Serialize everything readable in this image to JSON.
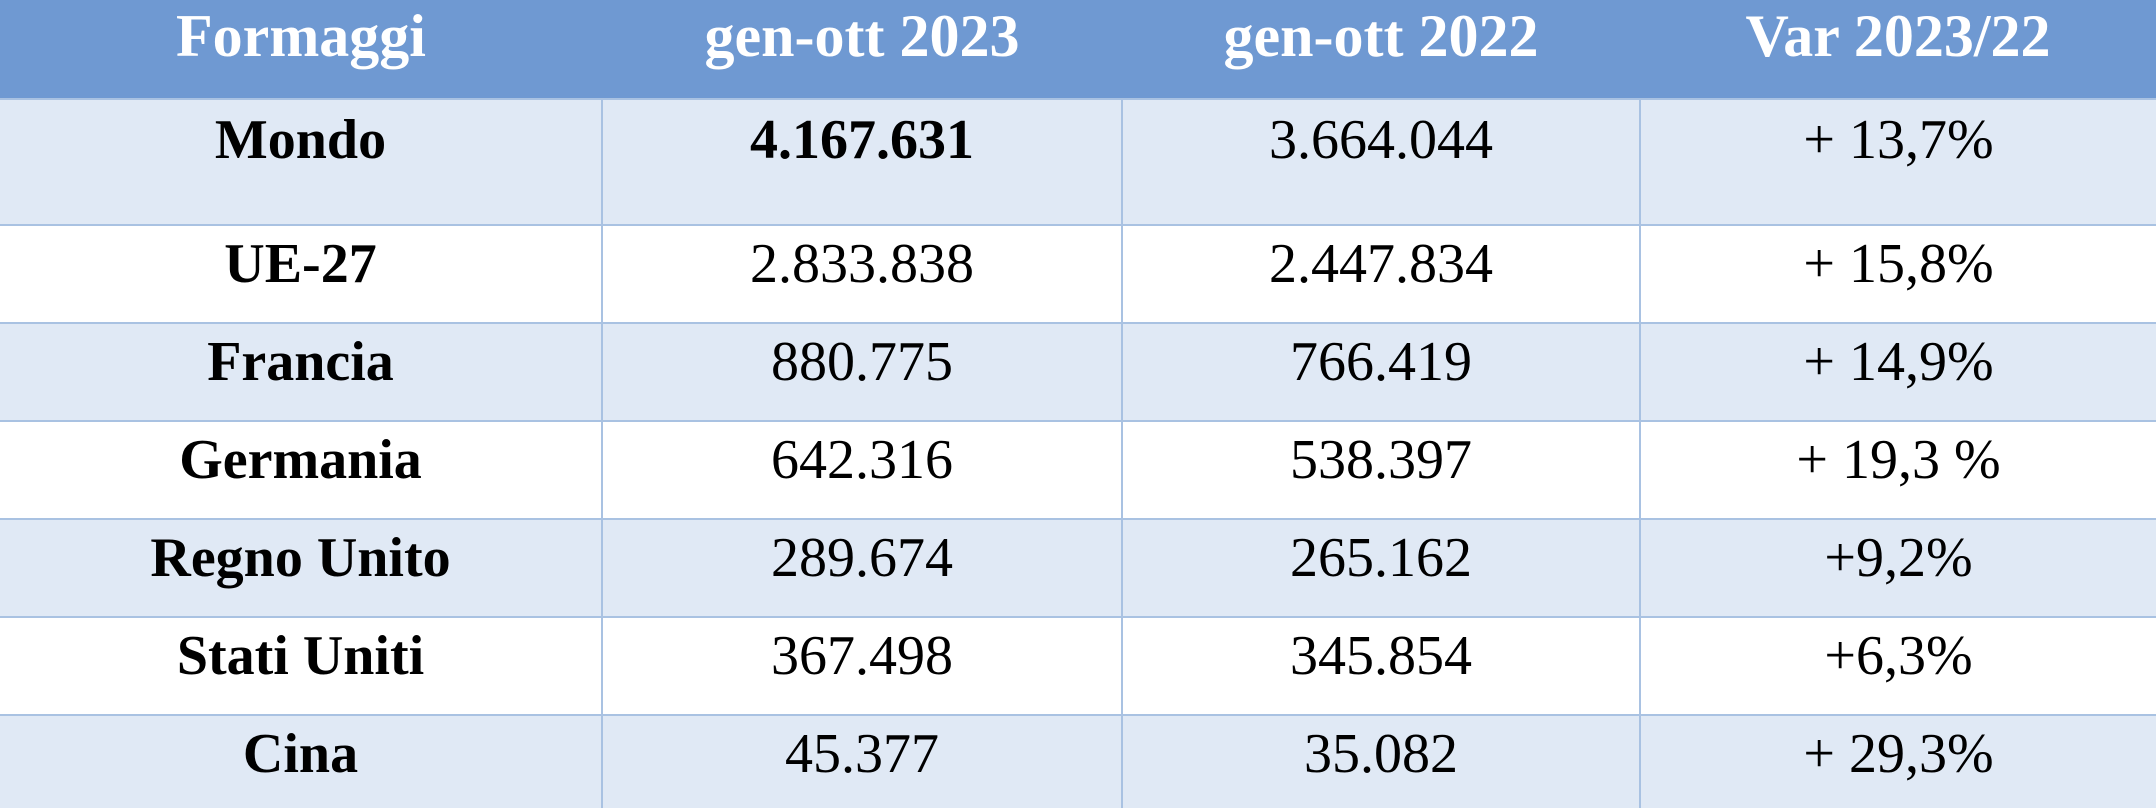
{
  "table": {
    "headers": [
      "Formaggi",
      "gen-ott 2023",
      "gen-ott 2022",
      "Var 2023/22"
    ],
    "rows": [
      {
        "name": "Mondo",
        "v2023": "4.167.631",
        "v2022": "3.664.044",
        "var": "+ 13,7%"
      },
      {
        "name": "UE-27",
        "v2023": "2.833.838",
        "v2022": "2.447.834",
        "var": "+ 15,8%"
      },
      {
        "name": "Francia",
        "v2023": "880.775",
        "v2022": "766.419",
        "var": "+ 14,9%"
      },
      {
        "name": "Germania",
        "v2023": "642.316",
        "v2022": "538.397",
        "var": "+ 19,3 %"
      },
      {
        "name": "Regno Unito",
        "v2023": "289.674",
        "v2022": "265.162",
        "var": "+9,2%"
      },
      {
        "name": "Stati Uniti",
        "v2023": "367.498",
        "v2022": "345.854",
        "var": "+6,3%"
      },
      {
        "name": "Cina",
        "v2023": "45.377",
        "v2022": "35.082",
        "var": "+ 29,3%"
      }
    ]
  },
  "colors": {
    "header_bg": "#6f99d2",
    "header_text": "#ffffff",
    "row_band": "#e0e9f5",
    "row_plain": "#ffffff",
    "grid_line": "#a9c2e2"
  }
}
